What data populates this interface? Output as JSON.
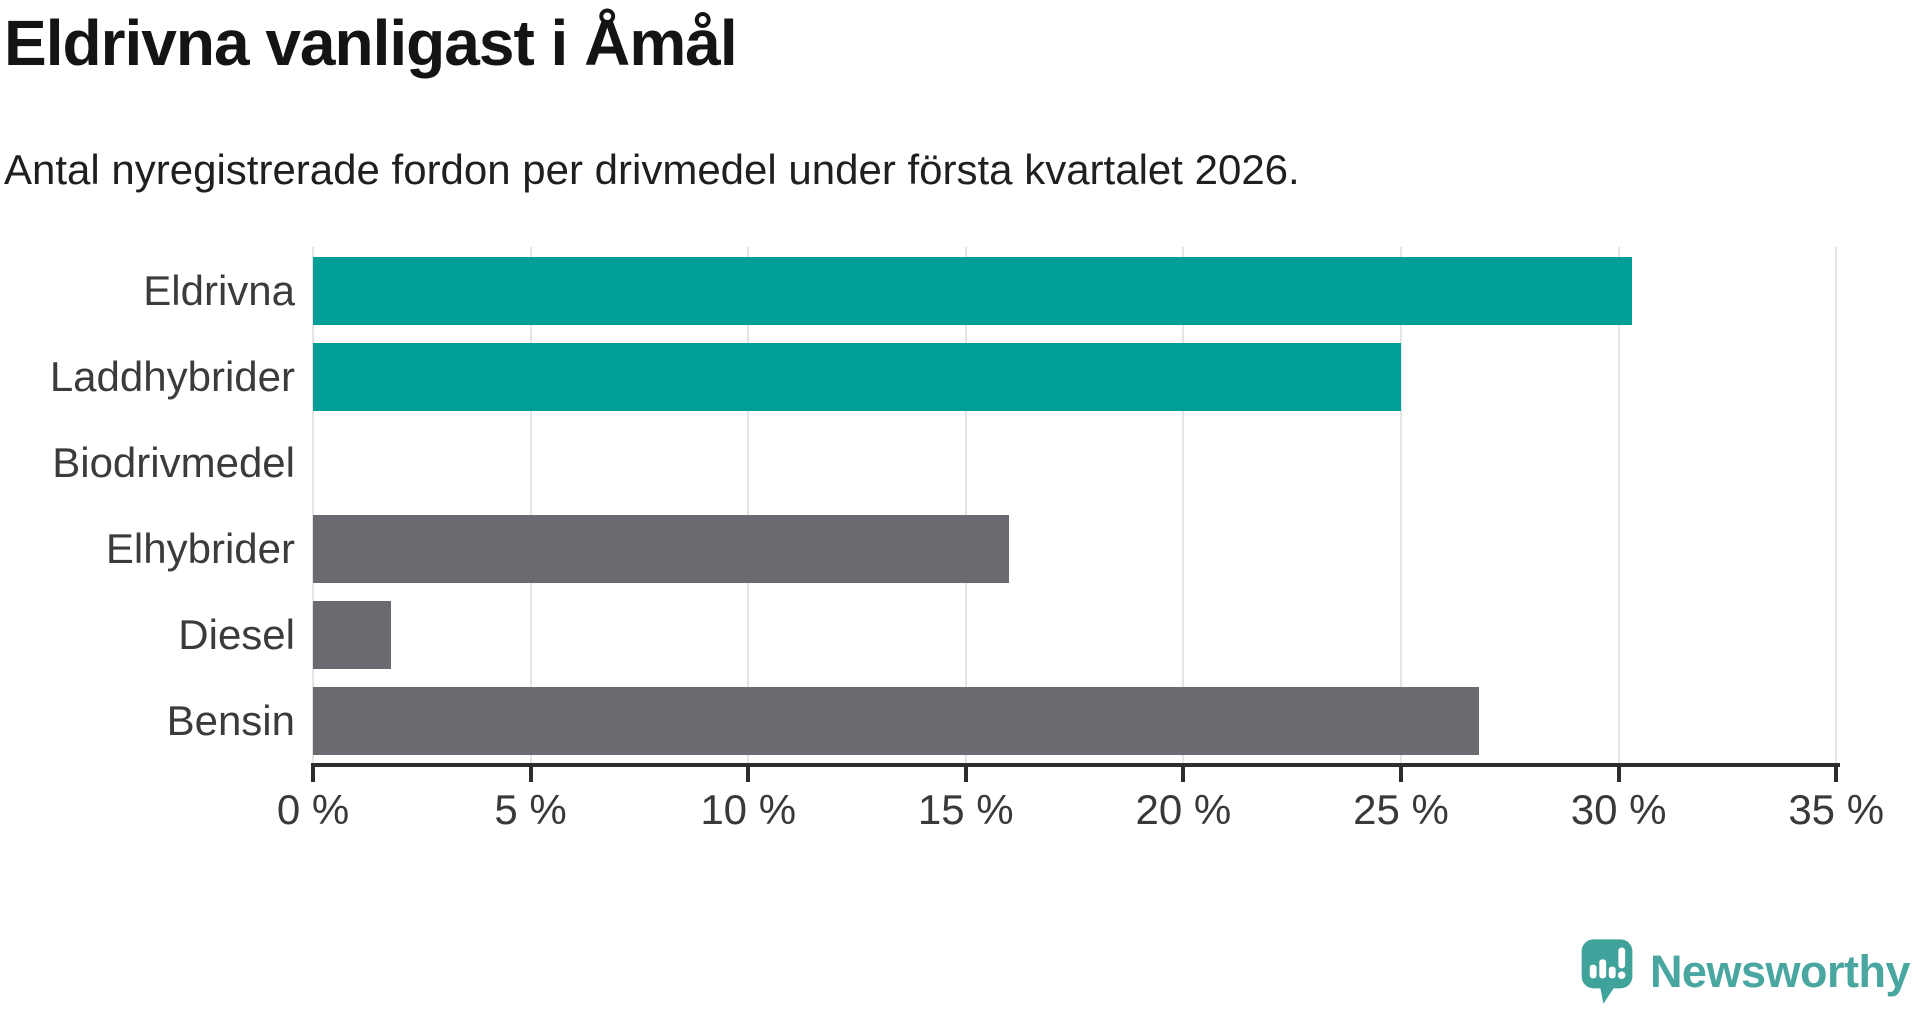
{
  "title": "Eldrivna vanligast i Åmål",
  "subtitle": "Antal nyregistrerade fordon per drivmedel under första kvartalet 2026.",
  "chart_data": {
    "type": "bar",
    "orientation": "horizontal",
    "title": "Eldrivna vanligast i Åmål",
    "subtitle": "Antal nyregistrerade fordon per drivmedel under första kvartalet 2026.",
    "categories": [
      "Eldrivna",
      "Laddhybrider",
      "Biodrivmedel",
      "Elhybrider",
      "Diesel",
      "Bensin"
    ],
    "values": [
      30.3,
      25.0,
      0,
      16.0,
      1.8,
      26.8
    ],
    "unit": "%",
    "bar_colors": [
      "#009e96",
      "#009e96",
      "#6a6b70",
      "#6a6b70",
      "#6a6b70",
      "#6a6b70"
    ],
    "highlight_color": "#009e96",
    "default_color": "#6a6b70",
    "xlim": [
      0,
      35
    ],
    "x_ticks": [
      0,
      5,
      10,
      15,
      20,
      25,
      30,
      35
    ],
    "x_tick_labels": [
      "0 %",
      "5 %",
      "10 %",
      "15 %",
      "20 %",
      "25 %",
      "30 %",
      "35 %"
    ],
    "grid": true,
    "legend": "none"
  },
  "footer": {
    "brand": "Newsworthy",
    "brand_color": "#4aa6a0",
    "logo_mark_color": "#3fa39c"
  }
}
